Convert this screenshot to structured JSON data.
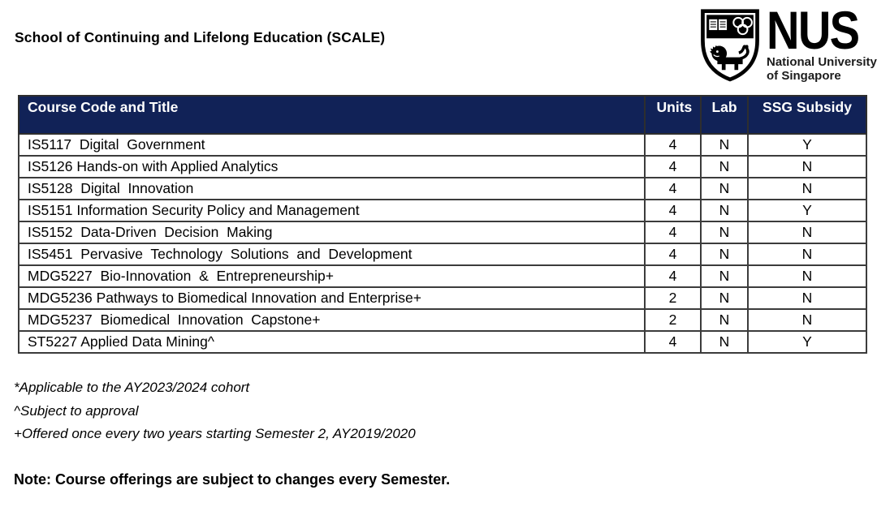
{
  "page": {
    "title": "School of Continuing and Lifelong Education (SCALE)"
  },
  "logo": {
    "acronym": "NUS",
    "name_line1": "National University",
    "name_line2": "of Singapore"
  },
  "table": {
    "headers": [
      "Course Code and Title",
      "Units",
      "Lab",
      "SSG Subsidy"
    ],
    "rows": [
      {
        "title": "IS5117  Digital  Government",
        "units": "4",
        "lab": "N",
        "ssg": "Y"
      },
      {
        "title": "IS5126 Hands-on with Applied Analytics",
        "units": "4",
        "lab": "N",
        "ssg": "N"
      },
      {
        "title": "IS5128  Digital  Innovation",
        "units": "4",
        "lab": "N",
        "ssg": "N"
      },
      {
        "title": "IS5151 Information Security Policy and Management",
        "units": "4",
        "lab": "N",
        "ssg": "Y"
      },
      {
        "title": "IS5152  Data-Driven  Decision  Making",
        "units": "4",
        "lab": "N",
        "ssg": "N"
      },
      {
        "title": "IS5451  Pervasive  Technology  Solutions  and  Development",
        "units": "4",
        "lab": "N",
        "ssg": "N"
      },
      {
        "title": "MDG5227  Bio-Innovation  &  Entrepreneurship+",
        "units": "4",
        "lab": "N",
        "ssg": "N"
      },
      {
        "title": "MDG5236 Pathways to Biomedical Innovation and Enterprise+",
        "units": "2",
        "lab": "N",
        "ssg": "N"
      },
      {
        "title": "MDG5237  Biomedical  Innovation  Capstone+",
        "units": "2",
        "lab": "N",
        "ssg": "N"
      },
      {
        "title": "ST5227 Applied Data Mining^",
        "units": "4",
        "lab": "N",
        "ssg": "Y"
      }
    ]
  },
  "footnotes": [
    "*Applicable to the AY2023/2024 cohort",
    "^Subject to approval",
    "+Offered once every two years starting Semester 2, AY2019/2020"
  ],
  "note": "Note: Course offerings are subject to changes every Semester.",
  "colors": {
    "header_bg": "#112257",
    "header_text": "#FFFFFF",
    "border": "#3C3C3C",
    "text": "#000000"
  }
}
